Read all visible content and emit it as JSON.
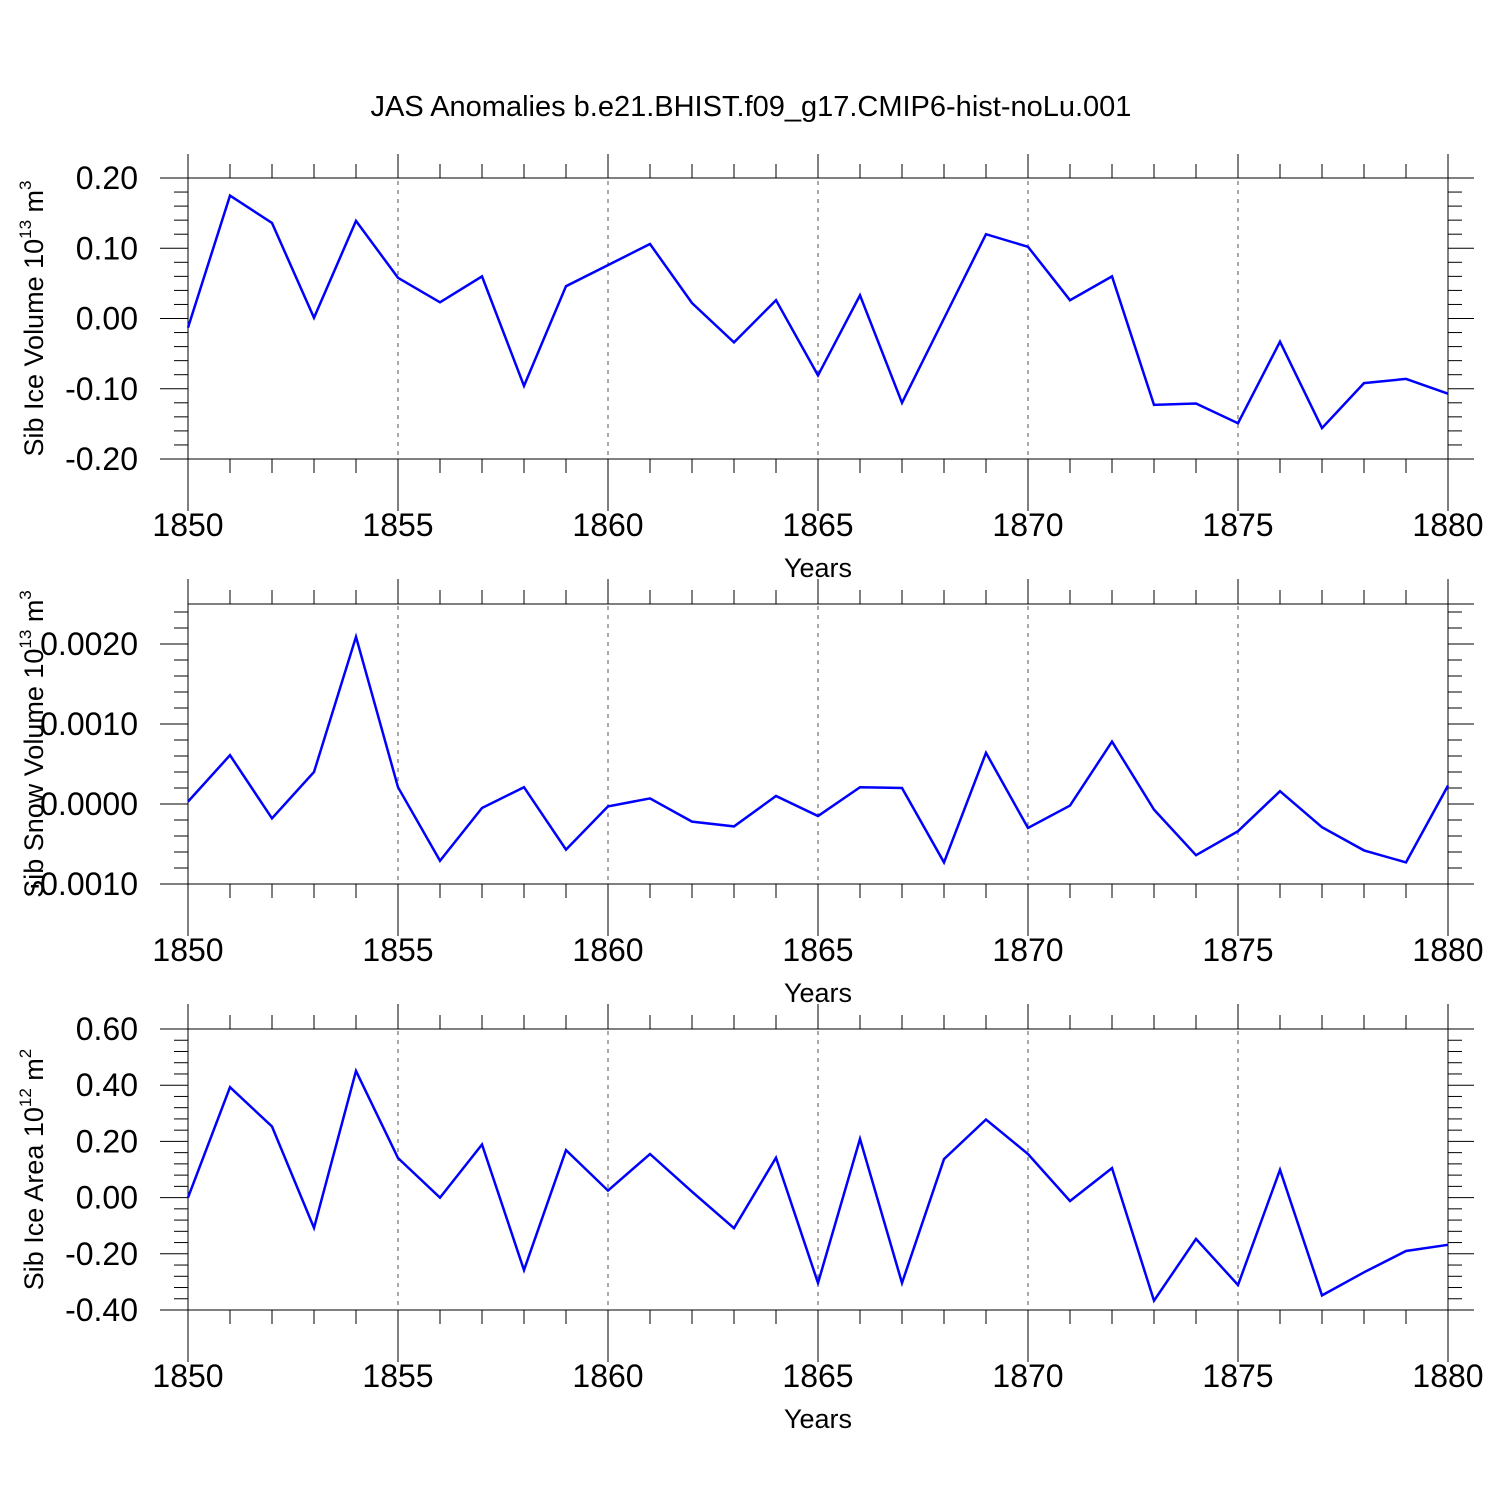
{
  "title": "JAS Anomalies b.e21.BHIST.f09_g17.CMIP6-hist-noLu.001",
  "line_color": "#0000ff",
  "chart_data": [
    {
      "type": "line",
      "xlabel": "Years",
      "ylabel": "Sib Ice Volume 10",
      "ylabel_exp": "13",
      "ylabel_unit": " m",
      "ylabel_unit_exp": "3",
      "xlim": [
        1850,
        1880
      ],
      "ylim": [
        -0.2,
        0.2
      ],
      "xticks": [
        1850,
        1855,
        1860,
        1865,
        1870,
        1875,
        1880
      ],
      "yticks": [
        "0.20",
        "0.10",
        "0.00",
        "-0.10",
        "-0.20"
      ],
      "ytick_values": [
        0.2,
        0.1,
        0.0,
        -0.1,
        -0.2
      ],
      "x": [
        1850,
        1851,
        1852,
        1853,
        1854,
        1855,
        1856,
        1857,
        1858,
        1859,
        1860,
        1861,
        1862,
        1863,
        1864,
        1865,
        1866,
        1867,
        1868,
        1869,
        1870,
        1871,
        1872,
        1873,
        1874,
        1875,
        1876,
        1877,
        1878,
        1879,
        1880
      ],
      "values": [
        -0.013,
        0.175,
        0.136,
        0.001,
        0.139,
        0.058,
        0.023,
        0.06,
        -0.096,
        0.046,
        0.076,
        0.106,
        0.022,
        -0.034,
        0.026,
        -0.081,
        0.033,
        -0.12,
        0.0,
        0.12,
        0.102,
        0.026,
        0.06,
        -0.123,
        -0.121,
        -0.149,
        -0.033,
        -0.156,
        -0.092,
        -0.086,
        -0.107
      ]
    },
    {
      "type": "line",
      "xlabel": "Years",
      "ylabel": "Sib Snow Volume 10",
      "ylabel_exp": "13",
      "ylabel_unit": " m",
      "ylabel_unit_exp": "3",
      "xlim": [
        1850,
        1880
      ],
      "ylim": [
        -0.001,
        0.0025
      ],
      "xticks": [
        1850,
        1855,
        1860,
        1865,
        1870,
        1875,
        1880
      ],
      "yticks": [
        "0.0020",
        "0.0010",
        "0.0000",
        "-0.0010"
      ],
      "ytick_values": [
        0.002,
        0.001,
        0.0,
        -0.001
      ],
      "x": [
        1850,
        1851,
        1852,
        1853,
        1854,
        1855,
        1856,
        1857,
        1858,
        1859,
        1860,
        1861,
        1862,
        1863,
        1864,
        1865,
        1866,
        1867,
        1868,
        1869,
        1870,
        1871,
        1872,
        1873,
        1874,
        1875,
        1876,
        1877,
        1878,
        1879,
        1880
      ],
      "values": [
        3e-05,
        0.00061,
        -0.00018,
        0.0004,
        0.00209,
        0.00021,
        -0.00071,
        -5e-05,
        0.00021,
        -0.00057,
        -3e-05,
        7e-05,
        -0.00022,
        -0.00028,
        0.0001,
        -0.00015,
        0.00021,
        0.0002,
        -0.00073,
        0.00064,
        -0.0003,
        -2e-05,
        0.00078,
        -7e-05,
        -0.00064,
        -0.00034,
        0.00016,
        -0.00029,
        -0.00058,
        -0.00073,
        0.00023
      ]
    },
    {
      "type": "line",
      "xlabel": "Years",
      "ylabel": "Sib Ice Area 10",
      "ylabel_exp": "12",
      "ylabel_unit": " m",
      "ylabel_unit_exp": "2",
      "xlim": [
        1850,
        1880
      ],
      "ylim": [
        -0.4,
        0.6
      ],
      "xticks": [
        1850,
        1855,
        1860,
        1865,
        1870,
        1875,
        1880
      ],
      "yticks": [
        "0.60",
        "0.40",
        "0.20",
        "0.00",
        "-0.20",
        "-0.40"
      ],
      "ytick_values": [
        0.6,
        0.4,
        0.2,
        0.0,
        -0.2,
        -0.4
      ],
      "x": [
        1850,
        1851,
        1852,
        1853,
        1854,
        1855,
        1856,
        1857,
        1858,
        1859,
        1860,
        1861,
        1862,
        1863,
        1864,
        1865,
        1866,
        1867,
        1868,
        1869,
        1870,
        1871,
        1872,
        1873,
        1874,
        1875,
        1876,
        1877,
        1878,
        1879,
        1880
      ],
      "values": [
        0.0,
        0.393,
        0.253,
        -0.108,
        0.451,
        0.141,
        0.0,
        0.189,
        -0.258,
        0.169,
        0.025,
        0.155,
        0.021,
        -0.109,
        0.142,
        -0.304,
        0.209,
        -0.304,
        0.137,
        0.278,
        0.155,
        -0.012,
        0.105,
        -0.367,
        -0.147,
        -0.311,
        0.099,
        -0.348,
        -0.266,
        -0.19,
        -0.168
      ]
    }
  ]
}
